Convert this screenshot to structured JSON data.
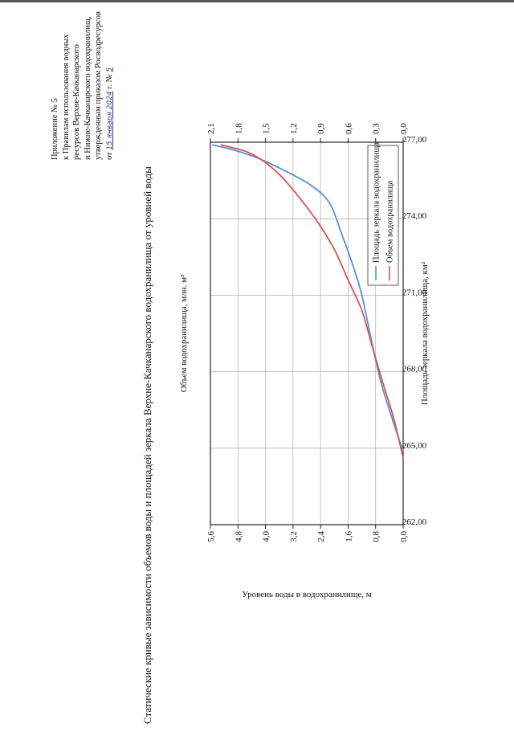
{
  "header": {
    "line1": "Приложение № 5",
    "line2": "к Правилам использования водных",
    "line3": "ресурсов Верхне-Качканарского",
    "line4": "и Нижне-Качканарского водохранилищ,",
    "line5": "утвержденным приказом Росводресурсов",
    "line6_prefix": "от",
    "date_handwritten": "15 января 2024",
    "line6_mid": "г. №",
    "number_handwritten": "5"
  },
  "chart_title": "Статические кривые зависимости объемов воды и площадей зеркала Верхне-Качканарского водохранилища от уровней воды",
  "chart_data": {
    "type": "line",
    "title": "Статические кривые зависимости объемов воды и площадей зеркала Верхне-Качканарского водохранилища от уровней воды",
    "ylabel": "Уровень воды в водохранилище, м",
    "ylim": [
      262,
      277
    ],
    "y_ticks": [
      "262,00",
      "265,00",
      "268,00",
      "271,00",
      "274,00",
      "277,00"
    ],
    "y_tick_values": [
      262,
      265,
      268,
      271,
      274,
      277
    ],
    "x_top_label": "Объем водохранилища, млн. м³",
    "x_top_lim": [
      0,
      5.6
    ],
    "x_top_ticks": [
      "0,0",
      "0,8",
      "1,6",
      "2,4",
      "3,2",
      "4,0",
      "4,8",
      "5,6"
    ],
    "x_top_tick_values": [
      0,
      0.8,
      1.6,
      2.4,
      3.2,
      4.0,
      4.8,
      5.6
    ],
    "x_bottom_label": "Площадь зеркала водохранилища, км²",
    "x_bottom_lim": [
      0,
      2.1
    ],
    "x_bottom_ticks": [
      "0,0",
      "0,3",
      "0,6",
      "0,9",
      "1,2",
      "1,5",
      "1,8",
      "2,1"
    ],
    "x_bottom_tick_values": [
      0,
      0.3,
      0.6,
      0.9,
      1.2,
      1.5,
      1.8,
      2.1
    ],
    "grid": true,
    "legend_position": "top-right",
    "series": [
      {
        "name": "Площадь зеркала водохранилища",
        "axis": "bottom",
        "color": "#5b8fd9",
        "points": [
          {
            "x": 0.0,
            "y": 264.9
          },
          {
            "x": 0.05,
            "y": 265.4
          },
          {
            "x": 0.15,
            "y": 266.5
          },
          {
            "x": 0.25,
            "y": 267.7
          },
          {
            "x": 0.35,
            "y": 269.3
          },
          {
            "x": 0.45,
            "y": 271.0
          },
          {
            "x": 0.55,
            "y": 272.2
          },
          {
            "x": 0.66,
            "y": 273.3
          },
          {
            "x": 0.8,
            "y": 274.6
          },
          {
            "x": 1.0,
            "y": 275.3
          },
          {
            "x": 1.3,
            "y": 275.9
          },
          {
            "x": 1.6,
            "y": 276.4
          },
          {
            "x": 1.85,
            "y": 276.7
          },
          {
            "x": 2.08,
            "y": 276.9
          }
        ]
      },
      {
        "name": "Объем водохранилища",
        "axis": "top",
        "color": "#d9534f",
        "points": [
          {
            "x": 0.0,
            "y": 264.6
          },
          {
            "x": 0.1,
            "y": 265.2
          },
          {
            "x": 0.3,
            "y": 266.3
          },
          {
            "x": 0.6,
            "y": 267.6
          },
          {
            "x": 0.9,
            "y": 269.0
          },
          {
            "x": 1.2,
            "y": 270.4
          },
          {
            "x": 1.6,
            "y": 271.6
          },
          {
            "x": 2.0,
            "y": 272.8
          },
          {
            "x": 2.5,
            "y": 273.9
          },
          {
            "x": 3.0,
            "y": 274.8
          },
          {
            "x": 3.5,
            "y": 275.6
          },
          {
            "x": 4.0,
            "y": 276.2
          },
          {
            "x": 4.5,
            "y": 276.6
          },
          {
            "x": 5.0,
            "y": 276.8
          },
          {
            "x": 5.3,
            "y": 276.9
          }
        ]
      }
    ]
  }
}
